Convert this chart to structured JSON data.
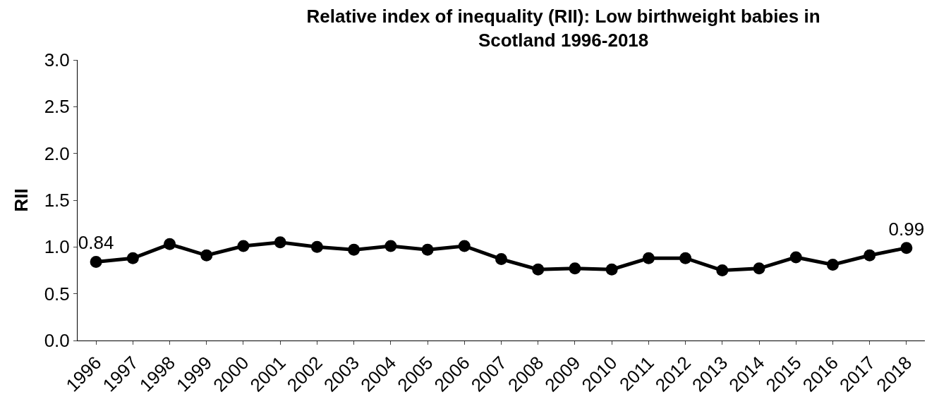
{
  "chart_data": {
    "type": "line",
    "title": "Relative index of inequality (RII): Low birthweight babies in Scotland 1996-2018",
    "ylabel": "RII",
    "categories": [
      "1996",
      "1997",
      "1998",
      "1999",
      "2000",
      "2001",
      "2002",
      "2003",
      "2004",
      "2005",
      "2006",
      "2007",
      "2008",
      "2009",
      "2010",
      "2011",
      "2012",
      "2013",
      "2014",
      "2015",
      "2016",
      "2017",
      "2018"
    ],
    "series": [
      {
        "color": "#000000",
        "values": [
          0.84,
          0.88,
          1.03,
          0.91,
          1.01,
          1.05,
          1.0,
          0.97,
          1.01,
          0.97,
          1.01,
          0.87,
          0.76,
          0.77,
          0.76,
          0.88,
          0.88,
          0.75,
          0.77,
          0.89,
          0.81,
          0.91,
          0.99
        ],
        "value_labels": [
          "0.84",
          null,
          null,
          null,
          null,
          null,
          null,
          null,
          null,
          null,
          null,
          null,
          null,
          null,
          null,
          null,
          null,
          null,
          null,
          null,
          null,
          null,
          "0.99"
        ]
      }
    ],
    "ylim": [
      0,
      3
    ],
    "yticks": [
      "0.0",
      "0.5",
      "1.0",
      "1.5",
      "2.0",
      "2.5",
      "3.0"
    ],
    "marker": "circle",
    "line_style": "solid"
  }
}
